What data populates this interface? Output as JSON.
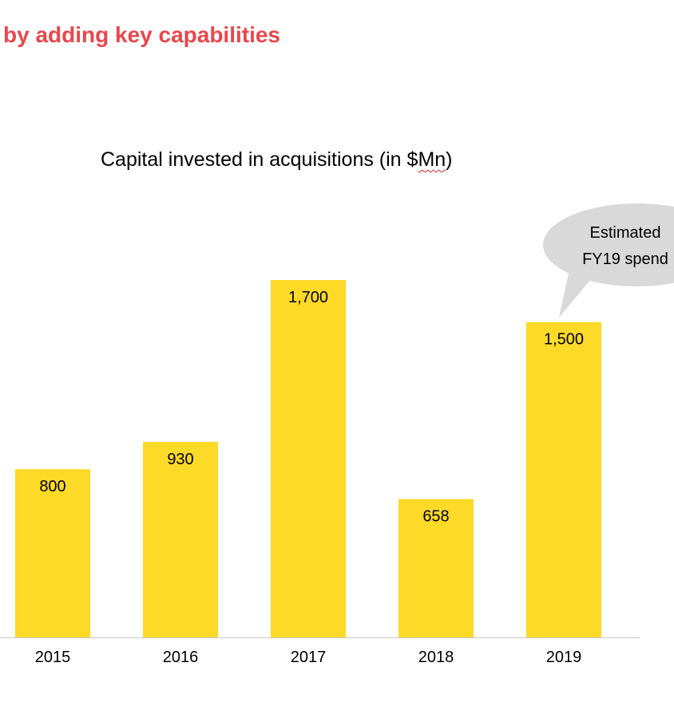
{
  "headline": "by adding key capabilities",
  "colors": {
    "headline": "#e8474c",
    "bar": "#fdd928",
    "axis": "#c8c8c8",
    "callout": "#d9d9d9",
    "text": "#000000"
  },
  "chart_data": {
    "type": "bar",
    "title_pre": "Capital invested in acquisitions (in $",
    "title_unit": "Mn",
    "title_post": ")",
    "categories": [
      "2015",
      "2016",
      "2017",
      "2018",
      "2019"
    ],
    "values": [
      800,
      930,
      1700,
      658,
      1500
    ],
    "value_labels": [
      "800",
      "930",
      "1,700",
      "658",
      "1,500"
    ],
    "ylim": [
      0,
      1700
    ],
    "xlabel": "",
    "ylabel": "",
    "grid": false,
    "legend": "none",
    "annotation": {
      "category": "2019",
      "lines": [
        "Estimated",
        "FY19 spend"
      ]
    }
  }
}
